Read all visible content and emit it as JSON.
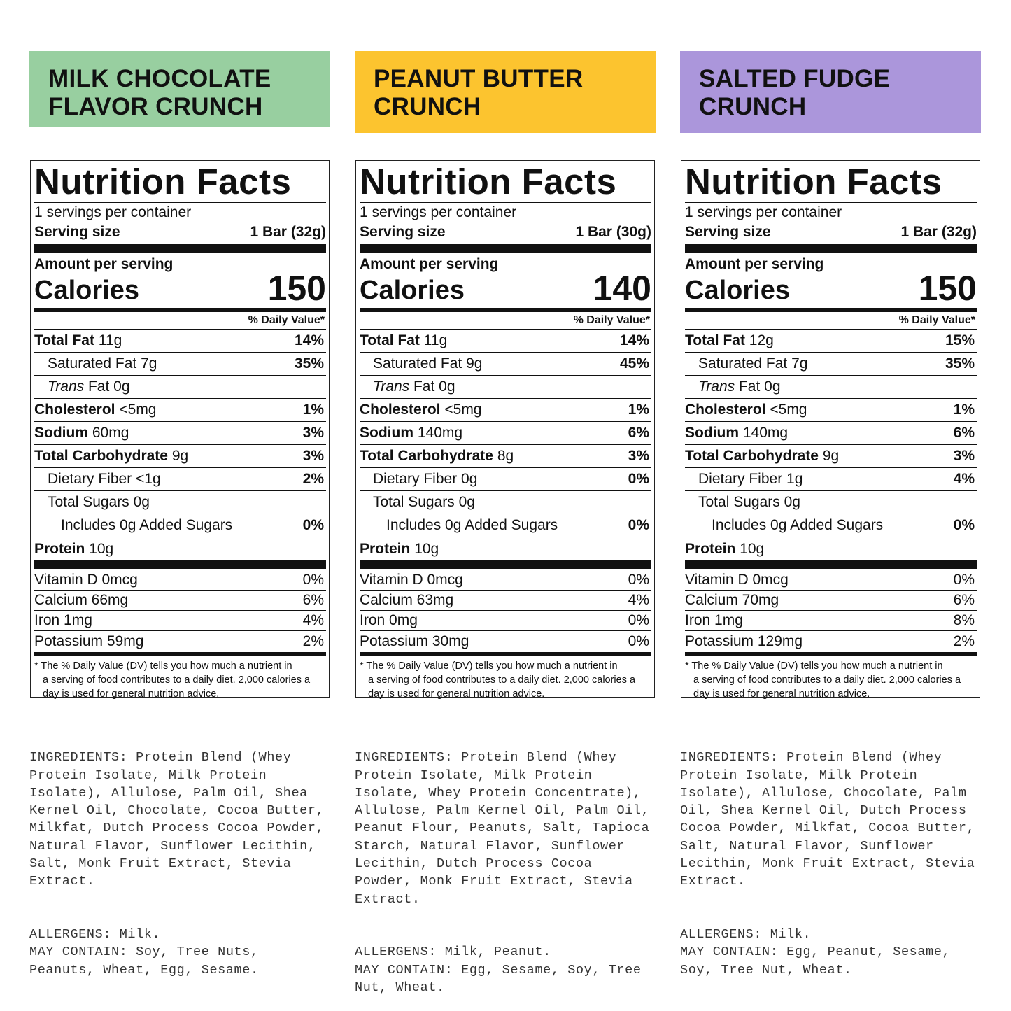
{
  "colors": {
    "milk_chocolate": "#98cfa0",
    "peanut_butter": "#fcc42f",
    "salted_fudge": "#ab96db"
  },
  "common": {
    "title": "Nutrition Facts",
    "servings": "1 servings per container",
    "serving_size_label": "Serving size",
    "amount_per_serving": "Amount per serving",
    "calories_label": "Calories",
    "daily_value_header": "% Daily Value*",
    "nutrient_names": {
      "total_fat": "Total Fat",
      "sat_fat": "Saturated Fat",
      "trans_fat_italic": "Trans",
      "trans_fat": "Fat",
      "cholesterol": "Cholesterol",
      "sodium": "Sodium",
      "total_carb": "Total Carbohydrate",
      "fiber": "Dietary Fiber",
      "sugars": "Total Sugars",
      "added_sugars": "Includes 0g Added Sugars",
      "protein": "Protein"
    },
    "footnote_star": "* The % Daily Value (DV) tells you how much a nutrient in",
    "footnote_rest": "a serving of food contributes to a daily diet. 2,000 calories a day is used for general nutrition advice."
  },
  "products": [
    {
      "name": "MILK CHOCOLATE\nFLAVOR CRUNCH",
      "serving_size": "1 Bar (32g)",
      "calories": "150",
      "total_fat": "11g",
      "total_fat_dv": "14%",
      "sat_fat": "7g",
      "sat_fat_dv": "35%",
      "trans_fat": "0g",
      "cholesterol": "<5mg",
      "cholesterol_dv": "1%",
      "sodium": "60mg",
      "sodium_dv": "3%",
      "total_carb": "9g",
      "total_carb_dv": "3%",
      "fiber": "<1g",
      "fiber_dv": "2%",
      "sugars": "0g",
      "added_sugars_dv": "0%",
      "protein": "10g",
      "vitamin_d": "Vitamin D 0mcg",
      "vitamin_d_dv": "0%",
      "calcium": "Calcium 66mg",
      "calcium_dv": "6%",
      "iron": "Iron 1mg",
      "iron_dv": "4%",
      "potassium": "Potassium 59mg",
      "potassium_dv": "2%",
      "ingredients": "INGREDIENTS: Protein Blend (Whey\nProtein Isolate, Milk Protein\nIsolate), Allulose, Palm Oil, Shea\nKernel Oil, Chocolate, Cocoa Butter,\nMilkfat, Dutch Process Cocoa Powder,\nNatural Flavor, Sunflower Lecithin,\nSalt, Monk Fruit Extract, Stevia\nExtract.",
      "allergens": "ALLERGENS: Milk.\nMAY CONTAIN: Soy, Tree Nuts,\nPeanuts, Wheat, Egg, Sesame."
    },
    {
      "name": "PEANUT BUTTER\nCRUNCH",
      "serving_size": "1 Bar (30g)",
      "calories": "140",
      "total_fat": "11g",
      "total_fat_dv": "14%",
      "sat_fat": "9g",
      "sat_fat_dv": "45%",
      "trans_fat": "0g",
      "cholesterol": "<5mg",
      "cholesterol_dv": "1%",
      "sodium": "140mg",
      "sodium_dv": "6%",
      "total_carb": "8g",
      "total_carb_dv": "3%",
      "fiber": "0g",
      "fiber_dv": "0%",
      "sugars": "0g",
      "added_sugars_dv": "0%",
      "protein": "10g",
      "vitamin_d": "Vitamin D 0mcg",
      "vitamin_d_dv": "0%",
      "calcium": "Calcium 63mg",
      "calcium_dv": "4%",
      "iron": "Iron 0mg",
      "iron_dv": "0%",
      "potassium": "Potassium 30mg",
      "potassium_dv": "0%",
      "ingredients": "INGREDIENTS: Protein Blend (Whey\nProtein Isolate, Milk Protein\nIsolate, Whey Protein Concentrate),\nAllulose, Palm Kernel Oil, Palm Oil,\nPeanut Flour, Peanuts, Salt, Tapioca\nStarch, Natural Flavor, Sunflower\nLecithin, Dutch Process Cocoa\nPowder, Monk Fruit Extract, Stevia\nExtract.",
      "allergens": "ALLERGENS: Milk, Peanut.\nMAY CONTAIN: Egg, Sesame, Soy, Tree\nNut, Wheat."
    },
    {
      "name": "SALTED FUDGE\nCRUNCH",
      "serving_size": "1 Bar (32g)",
      "calories": "150",
      "total_fat": "12g",
      "total_fat_dv": "15%",
      "sat_fat": "7g",
      "sat_fat_dv": "35%",
      "trans_fat": "0g",
      "cholesterol": "<5mg",
      "cholesterol_dv": "1%",
      "sodium": "140mg",
      "sodium_dv": "6%",
      "total_carb": "9g",
      "total_carb_dv": "3%",
      "fiber": "1g",
      "fiber_dv": "4%",
      "sugars": "0g",
      "added_sugars_dv": "0%",
      "protein": "10g",
      "vitamin_d": "Vitamin D 0mcg",
      "vitamin_d_dv": "0%",
      "calcium": "Calcium 70mg",
      "calcium_dv": "6%",
      "iron": "Iron 1mg",
      "iron_dv": "8%",
      "potassium": "Potassium 129mg",
      "potassium_dv": "2%",
      "ingredients": "INGREDIENTS: Protein Blend (Whey\nProtein Isolate, Milk Protein\nIsolate), Allulose, Chocolate, Palm\nOil, Shea Kernel Oil, Dutch Process\nCocoa Powder, Milkfat, Cocoa Butter,\nSalt, Natural Flavor, Sunflower\nLecithin, Monk Fruit Extract, Stevia\nExtract.",
      "allergens": "ALLERGENS: Milk.\nMAY CONTAIN: Egg, Peanut, Sesame,\nSoy, Tree Nut, Wheat."
    }
  ]
}
